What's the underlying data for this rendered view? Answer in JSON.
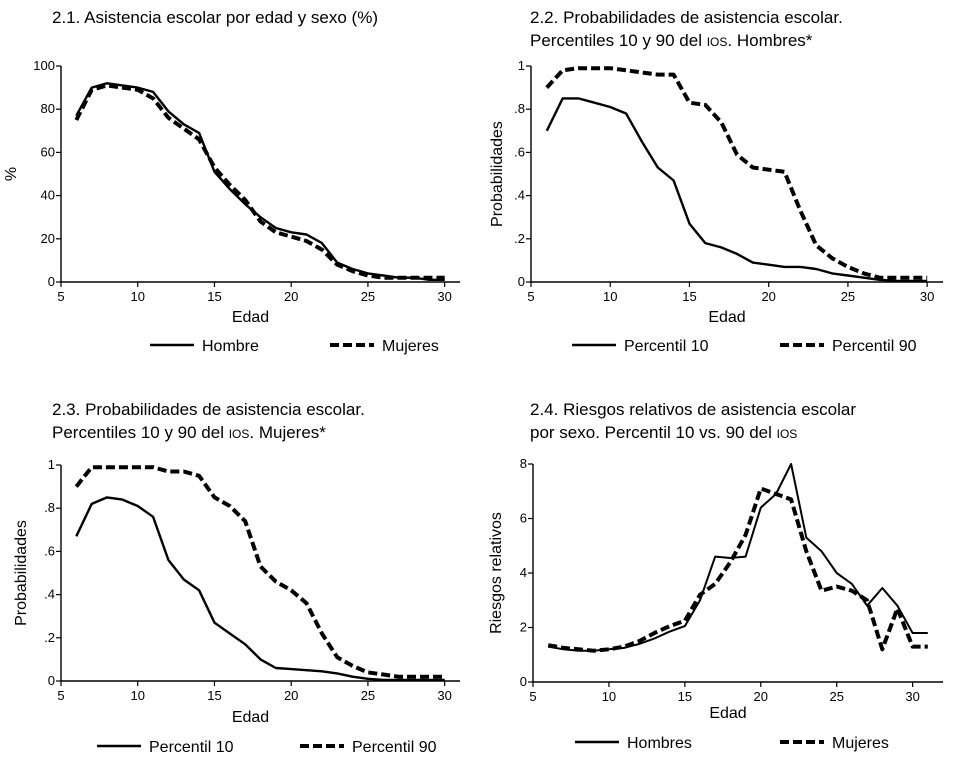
{
  "chart_data": [
    {
      "type": "line",
      "title_lines": [
        "2.1. Asistencia escolar por edad y sexo (%)"
      ],
      "xlabel": "Edad",
      "ylabel": "%",
      "xlim": [
        5,
        31
      ],
      "ylim": [
        0,
        100
      ],
      "xticks": [
        5,
        10,
        15,
        20,
        25,
        30
      ],
      "yticks": [
        0,
        20,
        40,
        60,
        80,
        100
      ],
      "ytick_labels": [
        "0",
        "20",
        "40",
        "60",
        "80",
        "100"
      ],
      "series": [
        {
          "name": "Hombre",
          "style": "solid",
          "x": [
            6,
            7,
            8,
            9,
            10,
            11,
            12,
            13,
            14,
            15,
            16,
            17,
            18,
            19,
            20,
            21,
            22,
            23,
            24,
            25,
            26,
            27,
            28,
            29,
            30
          ],
          "y": [
            77,
            90,
            92,
            91,
            90,
            88,
            79,
            73,
            69,
            51,
            43,
            36,
            30,
            25,
            23,
            22,
            18,
            9,
            6,
            4,
            3,
            2,
            2,
            1,
            1
          ]
        },
        {
          "name": "Mujeres",
          "style": "dashed",
          "x": [
            6,
            7,
            8,
            9,
            10,
            11,
            12,
            13,
            14,
            15,
            16,
            17,
            18,
            19,
            20,
            21,
            22,
            23,
            24,
            25,
            26,
            27,
            28,
            29,
            30
          ],
          "y": [
            75,
            89,
            91,
            90,
            89,
            85,
            76,
            71,
            66,
            53,
            45,
            38,
            28,
            23,
            21,
            19,
            15,
            8,
            5,
            3,
            2,
            2,
            2,
            2,
            2
          ]
        }
      ]
    },
    {
      "type": "line",
      "title_lines": [
        "2.2. Probabilidades de asistencia escolar.",
        "Percentiles 10 y 90 del |IOS|. Hombres*"
      ],
      "xlabel": "Edad",
      "ylabel": "Probabilidades",
      "xlim": [
        5,
        31
      ],
      "ylim": [
        0,
        1
      ],
      "xticks": [
        5,
        10,
        15,
        20,
        25,
        30
      ],
      "yticks": [
        0,
        0.2,
        0.4,
        0.6,
        0.8,
        1
      ],
      "ytick_labels": [
        "0",
        ".2",
        ".4",
        ".6",
        ".8",
        "1"
      ],
      "series": [
        {
          "name": "Percentil 10",
          "style": "solid",
          "x": [
            6,
            7,
            8,
            9,
            10,
            11,
            12,
            13,
            14,
            15,
            16,
            17,
            18,
            19,
            20,
            21,
            22,
            23,
            24,
            25,
            26,
            27,
            28,
            29,
            30
          ],
          "y": [
            0.7,
            0.85,
            0.85,
            0.83,
            0.81,
            0.78,
            0.65,
            0.53,
            0.47,
            0.27,
            0.18,
            0.16,
            0.13,
            0.09,
            0.08,
            0.07,
            0.07,
            0.06,
            0.04,
            0.03,
            0.02,
            0.01,
            0.005,
            0.005,
            0.005
          ]
        },
        {
          "name": "Percentil 90",
          "style": "dashed",
          "x": [
            6,
            7,
            8,
            9,
            10,
            11,
            12,
            13,
            14,
            15,
            16,
            17,
            18,
            19,
            20,
            21,
            22,
            23,
            24,
            25,
            26,
            27,
            28,
            29,
            30
          ],
          "y": [
            0.9,
            0.98,
            0.99,
            0.99,
            0.99,
            0.98,
            0.97,
            0.96,
            0.96,
            0.83,
            0.82,
            0.74,
            0.59,
            0.53,
            0.52,
            0.51,
            0.33,
            0.17,
            0.11,
            0.07,
            0.04,
            0.02,
            0.02,
            0.02,
            0.02
          ]
        }
      ]
    },
    {
      "type": "line",
      "title_lines": [
        "2.3. Probabilidades de asistencia escolar.",
        "Percentiles 10 y 90 del |IOS|. Mujeres*"
      ],
      "xlabel": "Edad",
      "ylabel": "Probabilidades",
      "xlim": [
        5,
        31
      ],
      "ylim": [
        0,
        1
      ],
      "xticks": [
        5,
        10,
        15,
        20,
        25,
        30
      ],
      "yticks": [
        0,
        0.2,
        0.4,
        0.6,
        0.8,
        1
      ],
      "ytick_labels": [
        "0",
        ".2",
        ".4",
        ".6",
        ".8",
        "1"
      ],
      "series": [
        {
          "name": "Percentil 10",
          "style": "solid",
          "x": [
            6,
            7,
            8,
            9,
            10,
            11,
            12,
            13,
            14,
            15,
            16,
            17,
            18,
            19,
            20,
            21,
            22,
            23,
            24,
            25,
            26,
            27,
            28,
            29,
            30
          ],
          "y": [
            0.67,
            0.82,
            0.85,
            0.84,
            0.81,
            0.76,
            0.56,
            0.47,
            0.42,
            0.27,
            0.22,
            0.17,
            0.1,
            0.06,
            0.055,
            0.05,
            0.045,
            0.035,
            0.02,
            0.01,
            0.005,
            0.005,
            0.005,
            0.005,
            0.005
          ]
        },
        {
          "name": "Percentil 90",
          "style": "dashed",
          "x": [
            6,
            7,
            8,
            9,
            10,
            11,
            12,
            13,
            14,
            15,
            16,
            17,
            18,
            19,
            20,
            21,
            22,
            23,
            24,
            25,
            26,
            27,
            28,
            29,
            30
          ],
          "y": [
            0.9,
            0.99,
            0.99,
            0.99,
            0.99,
            0.99,
            0.97,
            0.97,
            0.95,
            0.85,
            0.81,
            0.74,
            0.53,
            0.46,
            0.42,
            0.36,
            0.22,
            0.11,
            0.07,
            0.04,
            0.03,
            0.02,
            0.02,
            0.02,
            0.02
          ]
        }
      ]
    },
    {
      "type": "line",
      "title_lines": [
        "2.4. Riesgos relativos de asistencia escolar",
        "por sexo. Percentil 10 vs. 90 del |IOS|"
      ],
      "xlabel": "Edad",
      "ylabel": "Riesgos relativos",
      "xlim": [
        5,
        32
      ],
      "ylim": [
        0,
        8
      ],
      "xticks": [
        5,
        10,
        15,
        20,
        25,
        30
      ],
      "yticks": [
        0,
        2,
        4,
        6,
        8
      ],
      "ytick_labels": [
        "0",
        "2",
        "4",
        "6",
        "8"
      ],
      "series": [
        {
          "name": "Hombres",
          "style": "solid",
          "x": [
            6,
            7,
            8,
            9,
            10,
            11,
            12,
            13,
            14,
            15,
            16,
            17,
            18,
            19,
            20,
            21,
            22,
            23,
            24,
            25,
            26,
            27,
            28,
            29,
            30,
            31
          ],
          "y": [
            1.3,
            1.2,
            1.15,
            1.15,
            1.2,
            1.25,
            1.4,
            1.6,
            1.85,
            2.05,
            3.0,
            4.6,
            4.55,
            4.6,
            6.4,
            6.9,
            8.0,
            5.3,
            4.8,
            4.0,
            3.6,
            2.8,
            3.45,
            2.8,
            1.8,
            1.8
          ]
        },
        {
          "name": "Mujeres",
          "style": "dashed",
          "x": [
            6,
            7,
            8,
            9,
            10,
            11,
            12,
            13,
            14,
            15,
            16,
            17,
            18,
            19,
            20,
            21,
            22,
            23,
            24,
            25,
            26,
            27,
            28,
            29,
            30,
            31
          ],
          "y": [
            1.35,
            1.25,
            1.2,
            1.15,
            1.2,
            1.3,
            1.5,
            1.8,
            2.05,
            2.25,
            3.2,
            3.6,
            4.4,
            5.4,
            7.1,
            6.9,
            6.7,
            4.8,
            3.35,
            3.5,
            3.35,
            3.0,
            1.2,
            2.7,
            1.3,
            1.3
          ]
        }
      ]
    }
  ]
}
